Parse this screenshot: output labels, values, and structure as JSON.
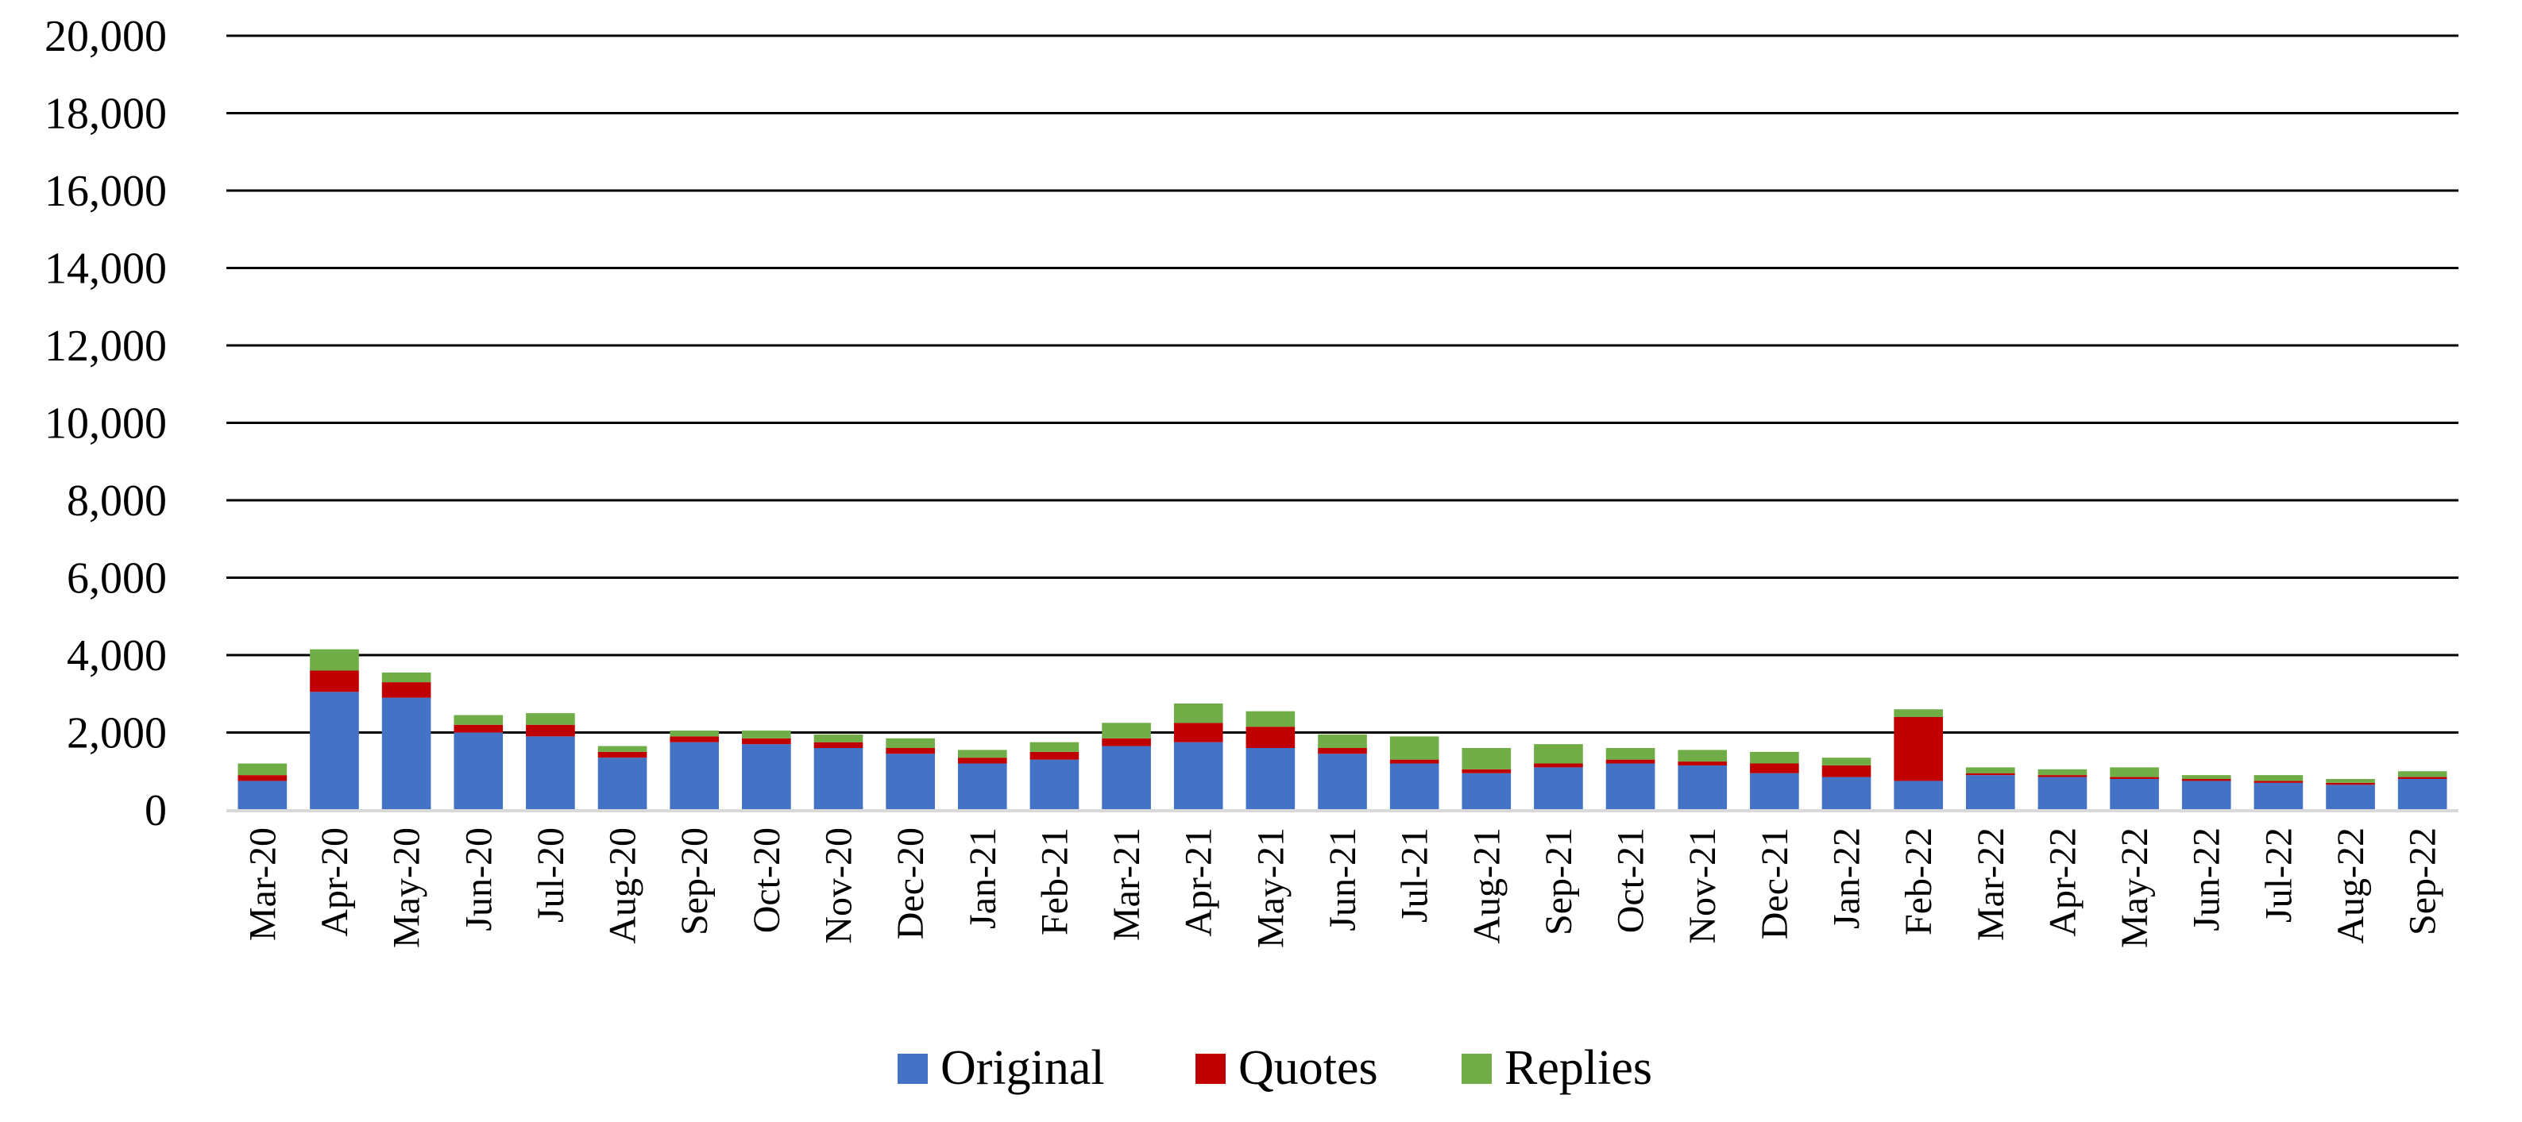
{
  "chart_data": {
    "type": "bar",
    "stacked": true,
    "categories": [
      "Mar-20",
      "Apr-20",
      "May-20",
      "Jun-20",
      "Jul-20",
      "Aug-20",
      "Sep-20",
      "Oct-20",
      "Nov-20",
      "Dec-20",
      "Jan-21",
      "Feb-21",
      "Mar-21",
      "Apr-21",
      "May-21",
      "Jun-21",
      "Jul-21",
      "Aug-21",
      "Sep-21",
      "Oct-21",
      "Nov-21",
      "Dec-21",
      "Jan-22",
      "Feb-22",
      "Mar-22",
      "Apr-22",
      "May-22",
      "Jun-22",
      "Jul-22",
      "Aug-22",
      "Sep-22"
    ],
    "series": [
      {
        "name": "Original",
        "color": "#4472c4",
        "values": [
          750,
          3050,
          2900,
          2000,
          1900,
          1350,
          1750,
          1700,
          1600,
          1450,
          1200,
          1300,
          1650,
          1750,
          1600,
          1450,
          1200,
          950,
          1100,
          1200,
          1150,
          950,
          850,
          750,
          900,
          850,
          800,
          750,
          700,
          650,
          800
        ]
      },
      {
        "name": "Quotes",
        "color": "#c00000",
        "values": [
          150,
          550,
          400,
          200,
          300,
          150,
          150,
          150,
          150,
          150,
          150,
          200,
          200,
          500,
          550,
          150,
          100,
          100,
          100,
          100,
          100,
          250,
          300,
          1650,
          50,
          50,
          50,
          50,
          50,
          50,
          50
        ]
      },
      {
        "name": "Replies",
        "color": "#70ad47",
        "values": [
          300,
          550,
          250,
          250,
          300,
          150,
          150,
          200,
          200,
          250,
          200,
          250,
          400,
          500,
          400,
          350,
          600,
          550,
          500,
          300,
          300,
          300,
          200,
          200,
          150,
          150,
          250,
          100,
          150,
          100,
          150
        ]
      }
    ],
    "title": "",
    "xlabel": "",
    "ylabel": "",
    "ylim": [
      0,
      20000
    ],
    "y_ticks": [
      "0",
      "2,000",
      "4,000",
      "6,000",
      "8,000",
      "10,000",
      "12,000",
      "14,000",
      "16,000",
      "18,000",
      "20,000"
    ],
    "grid": true,
    "legend_position": "bottom"
  }
}
